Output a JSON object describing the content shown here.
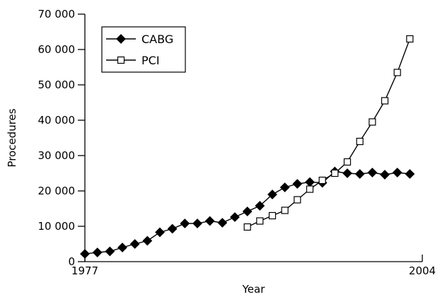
{
  "chart_data": {
    "type": "line",
    "xlabel": "Year",
    "ylabel": "Procedures",
    "xlim": [
      1977,
      2004
    ],
    "ylim": [
      0,
      70000
    ],
    "x_tick_labels": [
      "1977",
      "2004"
    ],
    "y_ticks": [
      0,
      10000,
      20000,
      30000,
      40000,
      50000,
      60000,
      70000
    ],
    "y_tick_labels": [
      "0",
      "10 000",
      "20 000",
      "30 000",
      "40 000",
      "50 000",
      "60 000",
      "70 000"
    ],
    "legend": {
      "position": "top-left",
      "labels": [
        "CABG",
        "PCI"
      ]
    },
    "grid": false,
    "series": [
      {
        "name": "CABG",
        "marker": "filled-diamond",
        "color": "#000000",
        "x": [
          1977,
          1978,
          1979,
          1980,
          1981,
          1982,
          1983,
          1984,
          1985,
          1986,
          1987,
          1988,
          1989,
          1990,
          1991,
          1992,
          1993,
          1994,
          1995,
          1996,
          1997,
          1998,
          1999,
          2000,
          2001,
          2002,
          2003,
          2004
        ],
        "values": [
          2200,
          2600,
          2900,
          4000,
          5000,
          5900,
          8300,
          9300,
          10800,
          10800,
          11500,
          11000,
          12600,
          14200,
          15800,
          19000,
          21000,
          22000,
          22500,
          22300,
          25500,
          25000,
          24800,
          25200,
          24600,
          25200,
          24800,
          null
        ]
      },
      {
        "name": "PCI",
        "marker": "open-square",
        "color": "#000000",
        "x": [
          1990,
          1991,
          1992,
          1993,
          1994,
          1995,
          1996,
          1997,
          1998,
          1999,
          2000,
          2001,
          2002,
          2003,
          2004
        ],
        "values": [
          9800,
          11500,
          13000,
          14500,
          17500,
          20500,
          23000,
          25000,
          28200,
          34000,
          39500,
          45500,
          53500,
          63000,
          null
        ]
      }
    ]
  }
}
